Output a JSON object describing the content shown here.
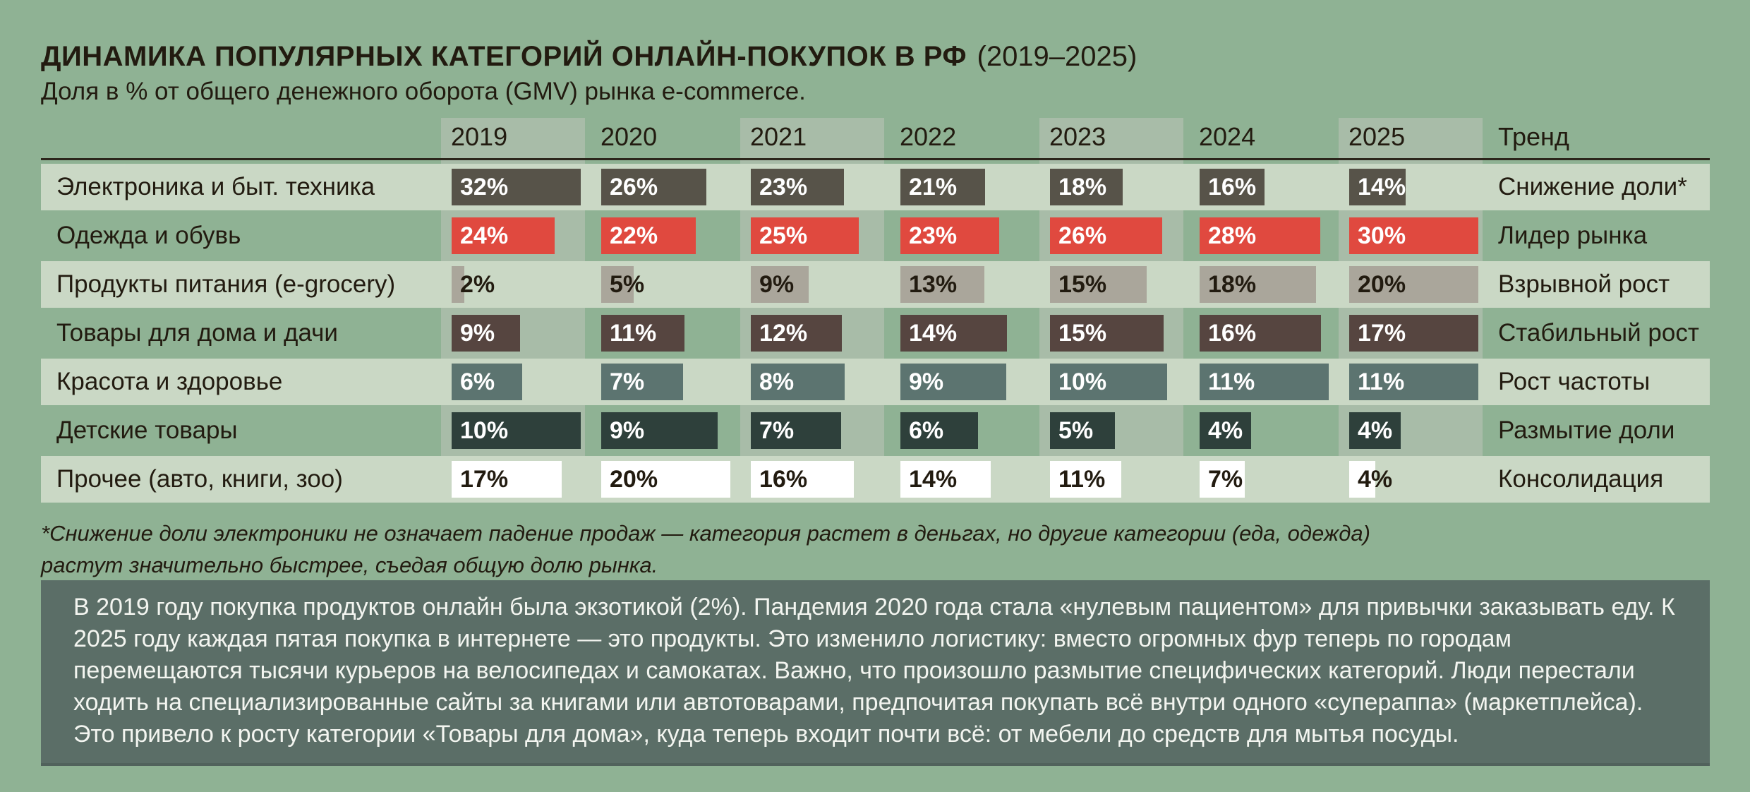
{
  "chart_data": {
    "type": "table",
    "title": "ДИНАМИКА ПОПУЛЯРНЫХ КАТЕГОРИЙ ОНЛАЙН-ПОКУПОК В РФ",
    "title_period": "(2019–2025)",
    "subtitle": "Доля в % от общего денежного оборота (GMV) рынка e-commerce.",
    "years": [
      "2019",
      "2020",
      "2021",
      "2022",
      "2023",
      "2024",
      "2025"
    ],
    "trend_header": "Тренд",
    "value_suffix": "%",
    "bar_scaling": "each bar width is proportional to value relative to the row maximum",
    "rows": [
      {
        "category": "Электроника и быт. техника",
        "values": [
          32,
          26,
          23,
          21,
          18,
          16,
          14
        ],
        "trend": "Снижение доли*",
        "bar_color": "#575349",
        "label_color": "#ffffff"
      },
      {
        "category": "Одежда и обувь",
        "values": [
          24,
          22,
          25,
          23,
          26,
          28,
          30
        ],
        "trend": "Лидер рынка",
        "bar_color": "#e0493f",
        "label_color": "#ffffff"
      },
      {
        "category": "Продукты питания (e-grocery)",
        "values": [
          2,
          5,
          9,
          13,
          15,
          18,
          20
        ],
        "trend": "Взрывной рост",
        "bar_color": "#aaa69b",
        "label_color": "#221b10"
      },
      {
        "category": "Товары для дома и дачи",
        "values": [
          9,
          11,
          12,
          14,
          15,
          16,
          17
        ],
        "trend": "Стабильный рост",
        "bar_color": "#564540",
        "label_color": "#ffffff"
      },
      {
        "category": "Красота и здоровье",
        "values": [
          6,
          7,
          8,
          9,
          10,
          11,
          11
        ],
        "trend": "Рост частоты",
        "bar_color": "#5c7470",
        "label_color": "#ffffff"
      },
      {
        "category": "Детские товары",
        "values": [
          10,
          9,
          7,
          6,
          5,
          4,
          4
        ],
        "trend": "Размытие доли",
        "bar_color": "#2e403b",
        "label_color": "#ffffff"
      },
      {
        "category": "Прочее (авто, книги, зоо)",
        "values": [
          17,
          20,
          16,
          14,
          11,
          7,
          4
        ],
        "trend": "Консолидация",
        "bar_color": "#ffffff",
        "label_color": "#221b10"
      }
    ]
  },
  "footnote": {
    "line1": "*Снижение доли электроники не означает падение продаж — категория растет в деньгах, но другие категории (еда, одежда)",
    "line2": "растут значительно быстрее, съедая общую долю рынка."
  },
  "summary": "В 2019 году покупка продуктов онлайн была экзотикой (2%). Пандемия 2020 года стала «нулевым пациентом» для привычки заказывать еду. К 2025 году каждая пятая покупка в интернете — это продукты. Это изменило логистику: вместо огромных фур теперь по городам перемещаются тысячи курьеров на велосипедах и самокатах. Важно, что произошло размытие специфических категорий. Люди перестали ходить на специализированные сайты за книгами или автотоварами, предпочитая покупать всё внутри одного «супераппа» (маркетплейса). Это привело к росту категории «Товары для дома», куда теперь входит почти всё: от мебели до средств для мытья посуды.",
  "colors": {
    "page_bg": "#8fb294",
    "row_light_bg": "#cad8c5",
    "column_stripe": "rgba(200,200,192,0.45)",
    "header_line": "#2c261c",
    "text": "#221b10",
    "summary_box_bg": "#5b6e67",
    "summary_box_text": "#f3f5f0",
    "leader_red": "#e0493f"
  }
}
